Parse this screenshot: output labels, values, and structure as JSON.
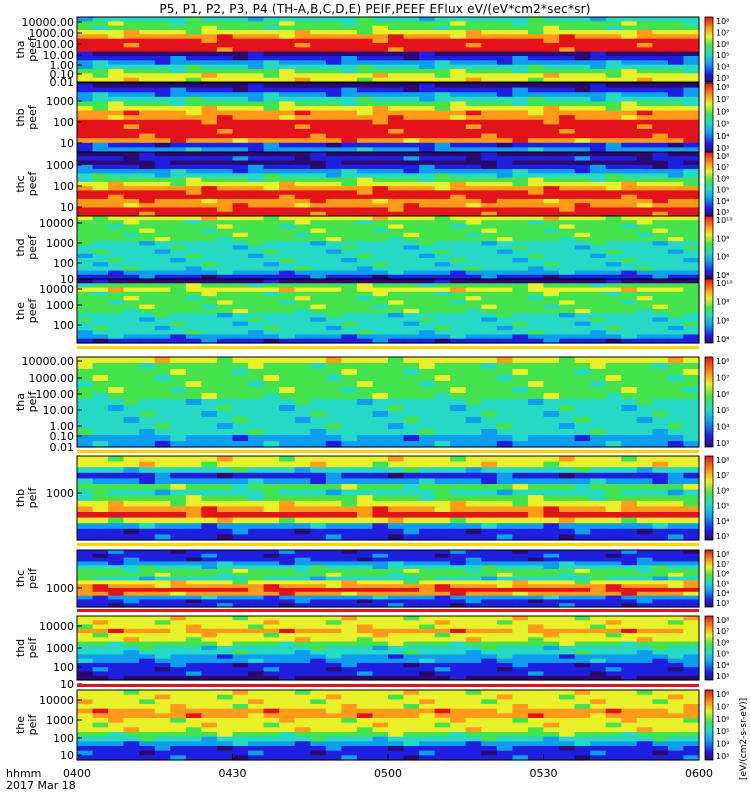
{
  "title": "P5, P1, P2, P3, P4 (TH-A,B,C,D,E) PEIF,PEEF EFlux eV/(eV*cm2*sec*sr)",
  "footer": {
    "line1": "hhmm",
    "line2": "2017 Mar 18"
  },
  "colorbar_unit": "[eV/(cm2-s-sr-eV)]",
  "colors": {
    "background": "#ffffff",
    "frame": "#000000"
  },
  "chart_data": [
    {
      "type": "heatmap",
      "probe": "tha",
      "species": "peef",
      "ylabel": [
        "tha",
        "peef"
      ],
      "yscale": "log",
      "yticks": [
        "10000.00",
        "1000.00",
        "100.00",
        "10.00",
        "1.00",
        "0.10",
        "0.01"
      ],
      "colorbar_ticks": [
        "10⁸",
        "10⁷",
        "10⁶",
        "10⁵",
        "10⁴",
        "10³"
      ]
    },
    {
      "type": "heatmap",
      "probe": "thb",
      "species": "peef",
      "ylabel": [
        "thb",
        "peef"
      ],
      "yscale": "log",
      "yticks": [
        "1000",
        "100",
        "10"
      ],
      "colorbar_ticks": [
        "10⁸",
        "10⁷",
        "10⁶",
        "10⁵",
        "10⁴",
        "10³"
      ]
    },
    {
      "type": "heatmap",
      "probe": "thc",
      "species": "peef",
      "ylabel": [
        "thc",
        "peef"
      ],
      "yscale": "log",
      "yticks": [
        "1000",
        "100",
        "10"
      ],
      "colorbar_ticks": [
        "10⁸",
        "10⁷",
        "10⁶",
        "10⁵",
        "10⁴",
        "10³"
      ]
    },
    {
      "type": "heatmap",
      "probe": "thd",
      "species": "peef",
      "ylabel": [
        "thd",
        "peef"
      ],
      "yscale": "log",
      "yticks": [
        "10000",
        "1000",
        "100",
        "10"
      ],
      "colorbar_ticks": [
        "10¹⁰",
        "10⁸",
        "10⁶",
        "10⁴"
      ]
    },
    {
      "type": "heatmap",
      "probe": "the",
      "species": "peef",
      "ylabel": [
        "the",
        "peef"
      ],
      "yscale": "log",
      "yticks": [
        "10000",
        "1000",
        "100"
      ],
      "colorbar_ticks": [
        "10¹⁰",
        "10⁸",
        "10⁶",
        "10⁴"
      ]
    },
    {
      "type": "heatmap",
      "probe": "tha",
      "species": "peif",
      "ylabel": [
        "tha",
        "peif"
      ],
      "yscale": "log",
      "yticks": [
        "10000.00",
        "1000.00",
        "100.00",
        "10.00",
        "1.00",
        "0.10",
        "0.01"
      ],
      "colorbar_ticks": [
        "10⁸",
        "10⁷",
        "10⁶",
        "10⁵",
        "10⁴",
        "10³"
      ]
    },
    {
      "type": "heatmap",
      "probe": "thb",
      "species": "peif",
      "ylabel": [
        "thb",
        "peif"
      ],
      "yscale": "log",
      "yticks": [
        "1000"
      ],
      "colorbar_ticks": [
        "10⁸",
        "10⁷",
        "10⁶",
        "10⁵",
        "10⁴",
        "10³"
      ]
    },
    {
      "type": "heatmap",
      "probe": "thc",
      "species": "peif",
      "ylabel": [
        "thc",
        "peif"
      ],
      "yscale": "log",
      "yticks": [
        "1000"
      ],
      "colorbar_ticks": [
        "10⁸",
        "10⁷",
        "10⁶",
        "10⁵",
        "10⁴",
        "10³"
      ]
    },
    {
      "type": "heatmap",
      "probe": "thd",
      "species": "peif",
      "ylabel": [
        "thd",
        "peif"
      ],
      "yscale": "log",
      "yticks": [
        "10000",
        "1000",
        "100",
        "10"
      ],
      "colorbar_ticks": [
        "10⁸",
        "10⁷",
        "10⁶",
        "10⁵",
        "10⁴",
        "10³"
      ]
    },
    {
      "type": "heatmap",
      "probe": "the",
      "species": "peif",
      "ylabel": [
        "the",
        "peif"
      ],
      "yscale": "log",
      "yticks": [
        "10000",
        "1000",
        "100",
        "10"
      ],
      "colorbar_ticks": [
        "10⁸",
        "10⁷",
        "10⁶",
        "10⁵",
        "10⁴",
        "10³"
      ]
    }
  ],
  "x_axis": {
    "ticks": [
      "0400",
      "0430",
      "0500",
      "0530",
      "0600"
    ],
    "range": [
      "0400",
      "0600"
    ]
  }
}
